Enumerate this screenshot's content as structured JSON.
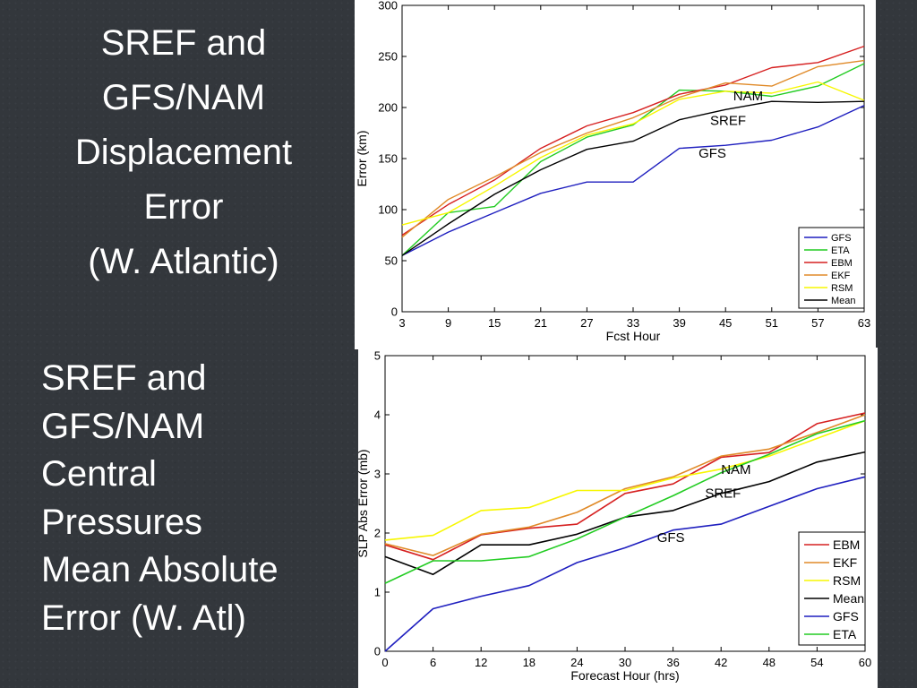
{
  "slide": {
    "title1_lines": [
      "SREF and",
      "GFS/NAM",
      "Displacement",
      "Error",
      "(W. Atlantic)"
    ],
    "title2_lines": [
      "SREF and",
      "GFS/NAM",
      "Central",
      "Pressures",
      "Mean Absolute",
      "Error (W. Atl)"
    ]
  },
  "chart_data": [
    {
      "type": "line",
      "title": "",
      "xlabel": "Fcst Hour",
      "ylabel": "Error (km)",
      "xlim": [
        3,
        63
      ],
      "ylim": [
        0,
        300
      ],
      "xticks": [
        3,
        9,
        15,
        21,
        27,
        33,
        39,
        45,
        51,
        57,
        63
      ],
      "yticks": [
        0,
        50,
        100,
        150,
        200,
        250,
        300
      ],
      "grid": false,
      "legend": "bottom-right",
      "x": [
        3,
        9,
        15,
        21,
        27,
        33,
        39,
        45,
        51,
        57,
        63
      ],
      "series": [
        {
          "name": "GFS",
          "color": "#1f1fbf",
          "values": [
            55,
            78,
            97,
            116,
            127,
            127,
            160,
            163,
            168,
            181,
            202
          ]
        },
        {
          "name": "ETA",
          "color": "#22cc22",
          "values": [
            55,
            97,
            103,
            147,
            171,
            183,
            217,
            216,
            211,
            221,
            243
          ]
        },
        {
          "name": "EBM",
          "color": "#d62020",
          "values": [
            75,
            105,
            129,
            160,
            182,
            195,
            213,
            222,
            239,
            244,
            260
          ]
        },
        {
          "name": "EKF",
          "color": "#e08a28",
          "values": [
            73,
            110,
            132,
            156,
            175,
            190,
            210,
            224,
            221,
            240,
            246
          ]
        },
        {
          "name": "RSM",
          "color": "#ffff00",
          "values": [
            85,
            97,
            123,
            151,
            173,
            184,
            208,
            216,
            214,
            225,
            207
          ]
        },
        {
          "name": "Mean",
          "color": "#000000",
          "values": [
            55,
            86,
            115,
            139,
            159,
            167,
            188,
            198,
            206,
            205,
            206
          ]
        }
      ],
      "annotations": [
        {
          "text": "NAM",
          "x": 46,
          "y": 207
        },
        {
          "text": "SREF",
          "x": 43,
          "y": 183
        },
        {
          "text": "GFS",
          "x": 41.5,
          "y": 151
        }
      ]
    },
    {
      "type": "line",
      "title": "",
      "xlabel": "Forecast Hour (hrs)",
      "ylabel": "SLP Abs Error (mb)",
      "xlim": [
        0,
        60
      ],
      "ylim": [
        0,
        5
      ],
      "xticks": [
        0,
        6,
        12,
        18,
        24,
        30,
        36,
        42,
        48,
        54,
        60
      ],
      "yticks": [
        0,
        1,
        2,
        3,
        4,
        5
      ],
      "grid": false,
      "legend": "bottom-right",
      "x": [
        0,
        6,
        12,
        18,
        24,
        30,
        36,
        42,
        48,
        54,
        60
      ],
      "series": [
        {
          "name": "EBM",
          "color": "#d62020",
          "values": [
            1.8,
            1.55,
            1.97,
            2.08,
            2.15,
            2.67,
            2.83,
            3.28,
            3.36,
            3.85,
            4.03
          ]
        },
        {
          "name": "EKF",
          "color": "#e08a28",
          "values": [
            1.82,
            1.62,
            1.98,
            2.1,
            2.35,
            2.75,
            2.95,
            3.3,
            3.42,
            3.7,
            4.0
          ]
        },
        {
          "name": "RSM",
          "color": "#ffff00",
          "values": [
            1.88,
            1.96,
            2.38,
            2.43,
            2.72,
            2.72,
            2.93,
            3.08,
            3.3,
            3.6,
            3.9
          ]
        },
        {
          "name": "Mean",
          "color": "#000000",
          "values": [
            1.6,
            1.3,
            1.8,
            1.8,
            1.98,
            2.27,
            2.38,
            2.67,
            2.87,
            3.2,
            3.37
          ]
        },
        {
          "name": "GFS",
          "color": "#1f1fbf",
          "values": [
            0.0,
            0.72,
            0.93,
            1.11,
            1.5,
            1.75,
            2.05,
            2.15,
            2.45,
            2.75,
            2.95
          ]
        },
        {
          "name": "ETA",
          "color": "#22cc22",
          "values": [
            1.15,
            1.53,
            1.53,
            1.6,
            1.9,
            2.27,
            2.63,
            3.02,
            3.33,
            3.68,
            3.9
          ]
        }
      ],
      "annotations": [
        {
          "text": "NAM",
          "x": 42,
          "y": 3.0
        },
        {
          "text": "SREF",
          "x": 40,
          "y": 2.6
        },
        {
          "text": "GFS",
          "x": 34,
          "y": 1.85
        }
      ]
    }
  ]
}
